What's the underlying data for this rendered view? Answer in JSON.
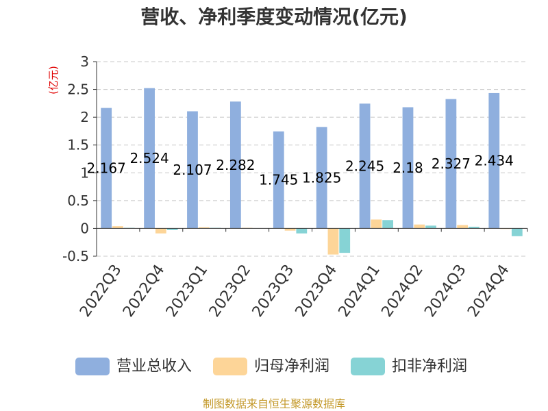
{
  "chart_data": {
    "type": "bar",
    "title": "营收、净利季度变动情况(亿元)",
    "xlabel": "",
    "ylabel": "(亿元)",
    "ylabel_color": "#E00000",
    "categories": [
      "2022Q3",
      "2022Q4",
      "2023Q1",
      "2023Q2",
      "2023Q3",
      "2023Q4",
      "2024Q1",
      "2024Q2",
      "2024Q3",
      "2024Q4"
    ],
    "series": [
      {
        "name": "营业总收入",
        "color": "#8FAFDE",
        "show_data_labels": true,
        "values": [
          2.167,
          2.524,
          2.107,
          2.282,
          1.745,
          1.825,
          2.245,
          2.18,
          2.327,
          2.434
        ]
      },
      {
        "name": "归母净利润",
        "color": "#FDD598",
        "values": [
          0.04,
          -0.09,
          0.02,
          0.01,
          -0.04,
          -0.47,
          0.16,
          0.07,
          0.06,
          -0.01
        ]
      },
      {
        "name": "扣非净利润",
        "color": "#86D3D5",
        "values": [
          0.01,
          -0.03,
          0.01,
          0.0,
          -0.09,
          -0.44,
          0.15,
          0.05,
          0.03,
          -0.14
        ]
      }
    ],
    "ylim": [
      -0.5,
      3
    ],
    "yticks": [
      -0.5,
      0,
      0.5,
      1,
      1.5,
      2,
      2.5,
      3
    ],
    "grid": true,
    "legend_position": "bottom"
  },
  "footer": {
    "source": "制图数据来自恒生聚源数据库",
    "color": "#C49A2C"
  }
}
